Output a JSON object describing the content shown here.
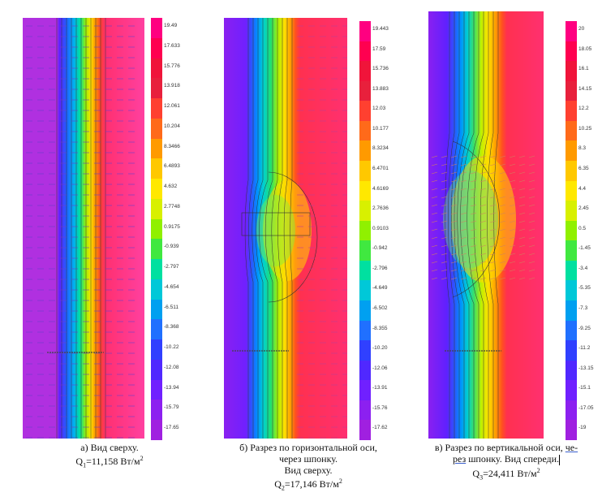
{
  "panels": [
    {
      "caption_line1": "а) Вид сверху.",
      "caption_q": "Q",
      "caption_q_sub": "1",
      "caption_q_value": "=11,158 Вт/м",
      "caption_q_sup": "2",
      "colorbar": [
        "19.49",
        "17.633",
        "15.776",
        "13.918",
        "12.061",
        "10.204",
        "8.3466",
        "6.4893",
        "4.632",
        "2.7748",
        "0.9175",
        "-0.939",
        "-2.797",
        "-4.654",
        "-6.511",
        "-8.368",
        "-10.22",
        "-12.08",
        "-13.94",
        "-15.79",
        "-17.65"
      ]
    },
    {
      "caption_line1": "б) Разрез по горизонтальной оси,",
      "caption_line2": "через шпонку.",
      "caption_line3": "Вид сверху.",
      "caption_q": "Q",
      "caption_q_sub": "2",
      "caption_q_value": "=17,146 Вт/м",
      "caption_q_sup": "2",
      "colorbar": [
        "19.443",
        "17.59",
        "15.736",
        "13.883",
        "12.03",
        "10.177",
        "8.3234",
        "6.4701",
        "4.6169",
        "2.7636",
        "0.9103",
        "-0.942",
        "-2.796",
        "-4.649",
        "-6.502",
        "-8.355",
        "-10.20",
        "-12.06",
        "-13.91",
        "-15.76",
        "-17.62"
      ]
    },
    {
      "caption_line1a": "в) Разрез по вертикальной оси, ",
      "caption_line1b": "че-",
      "caption_line2a": "рез",
      "caption_line2b": " шпонку. Вид спереди.",
      "caption_q": "Q",
      "caption_q_sub": "3",
      "caption_q_value": "=24,411 Вт/м",
      "caption_q_sup": "2",
      "colorbar": [
        "20",
        "18.05",
        "16.1",
        "14.15",
        "12.2",
        "10.25",
        "8.3",
        "6.35",
        "4.4",
        "2.45",
        "0.5",
        "-1.45",
        "-3.4",
        "-5.35",
        "-7.3",
        "-9.25",
        "-11.2",
        "-13.15",
        "-15.1",
        "-17.05",
        "-19"
      ]
    }
  ],
  "colors": {
    "scale": [
      "#ff0080",
      "#ff0050",
      "#f0143a",
      "#e8203c",
      "#ff4030",
      "#ff6a1a",
      "#ff9a00",
      "#ffc800",
      "#ffe800",
      "#d8f000",
      "#90f000",
      "#40e840",
      "#00e0a0",
      "#00c8d8",
      "#00a0f0",
      "#2070ff",
      "#3040ff",
      "#5028ff",
      "#7020ff",
      "#8c20f0",
      "#a020e0"
    ]
  }
}
